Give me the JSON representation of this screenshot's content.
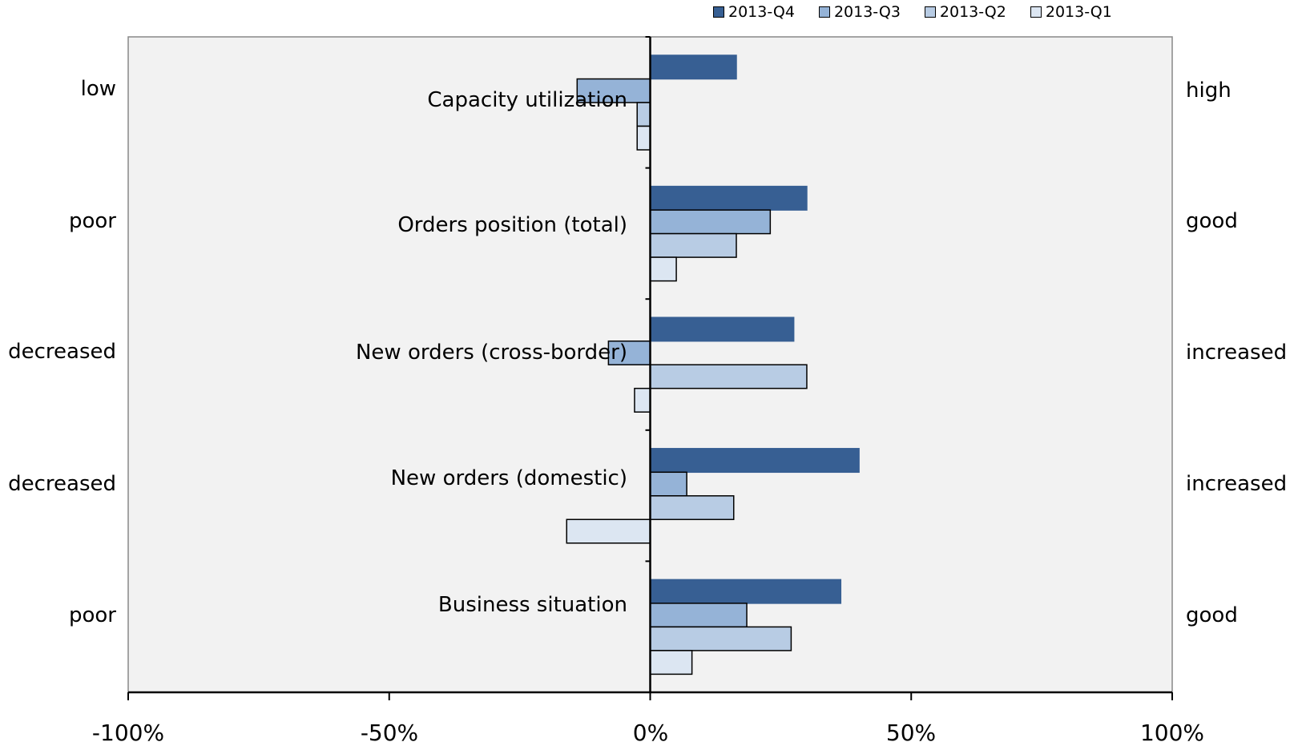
{
  "chart_data": {
    "type": "bar",
    "orientation": "horizontal",
    "categories": [
      "Capacity utilization",
      "Orders position (total)",
      "New orders (cross-border)",
      "New orders (domestic)",
      "Business situation"
    ],
    "left_labels": [
      "low",
      "poor",
      "decreased",
      "decreased",
      "poor"
    ],
    "right_labels": [
      "high",
      "good",
      "increased",
      "increased",
      "good"
    ],
    "series": [
      {
        "name": "2013-Q4",
        "color": "#375f93",
        "values": [
          16.5,
          30,
          27.5,
          40,
          36.5
        ]
      },
      {
        "name": "2013-Q3",
        "color": "#95b3d7",
        "values": [
          -14,
          23,
          -8,
          7,
          18.5
        ]
      },
      {
        "name": "2013-Q2",
        "color": "#b8cce4",
        "values": [
          -2.5,
          16.5,
          30,
          16,
          27
        ]
      },
      {
        "name": "2013-Q1",
        "color": "#dce6f2",
        "values": [
          -2.5,
          5,
          -3,
          -16,
          8
        ]
      }
    ],
    "xlim": [
      -100,
      100
    ],
    "xticks": [
      -100,
      -50,
      0,
      50,
      100
    ],
    "xtick_labels": [
      "-100%",
      "-50%",
      "0%",
      "50%",
      "100%"
    ],
    "legend": "top",
    "grid": false,
    "plot_background": "#f2f2f2"
  }
}
